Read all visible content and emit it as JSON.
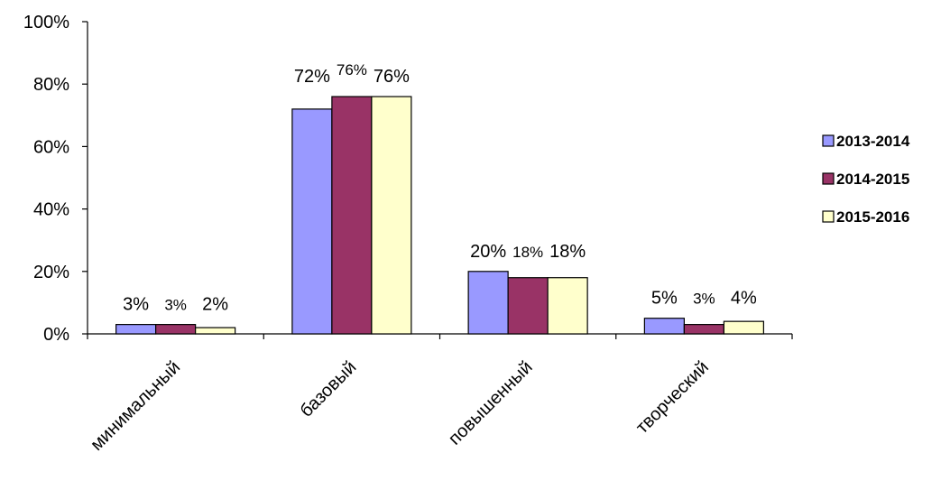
{
  "chart_data": {
    "type": "bar",
    "categories": [
      "минимальный",
      "базовый",
      "повышенный",
      "творческий"
    ],
    "series": [
      {
        "name": "2013-2014",
        "values": [
          3,
          72,
          20,
          5
        ],
        "labels": [
          "3%",
          "72%",
          "20%",
          "5%"
        ],
        "color": "#9999ff"
      },
      {
        "name": "2014-2015",
        "values": [
          3,
          76,
          18,
          3
        ],
        "labels": [
          "3%",
          "76%",
          "18%",
          "3%"
        ],
        "color": "#993366"
      },
      {
        "name": "2015-2016",
        "values": [
          2,
          76,
          18,
          4
        ],
        "labels": [
          "2%",
          "76%",
          "18%",
          "4%"
        ],
        "color": "#ffffcc"
      }
    ],
    "ylim": [
      0,
      100
    ],
    "yticks": [
      0,
      20,
      40,
      60,
      80,
      100
    ],
    "ytick_labels": [
      "0%",
      "20%",
      "40%",
      "60%",
      "80%",
      "100%"
    ],
    "grid": false,
    "legend": "right"
  }
}
